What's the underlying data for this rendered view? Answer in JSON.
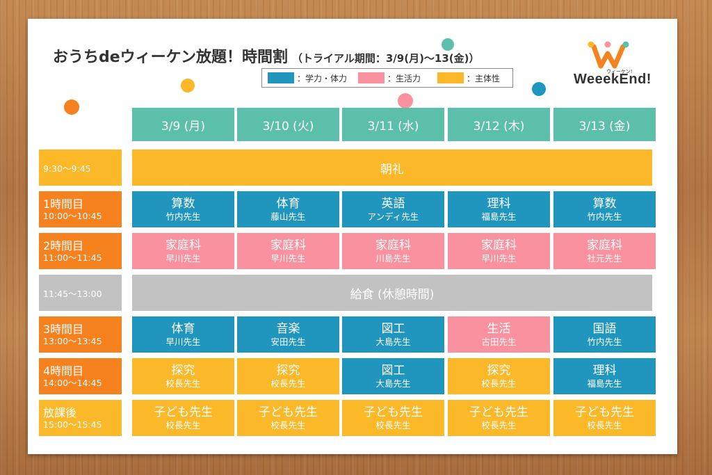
{
  "title": {
    "main": "おうちdeウィーケン放題！時間割",
    "sub": "（トライアル期間：3/9(月)〜13(金)）"
  },
  "legend": [
    {
      "label": "：学力・体力",
      "color": "#2096bf"
    },
    {
      "label": "：生活力",
      "color": "#f9919f"
    },
    {
      "label": "：主体性",
      "color": "#fbb829"
    }
  ],
  "logo": {
    "text": "WeeekEnd!",
    "small": "ウィーケン!"
  },
  "days": [
    "3/9 (月)",
    "3/10 (火)",
    "3/11 (水)",
    "3/12 (木)",
    "3/13 (金)"
  ],
  "periods": [
    {
      "name": "",
      "time": "9:30〜9:45",
      "wide": "朝礼"
    },
    {
      "name": "1時間目",
      "time": "10:00〜10:45",
      "lessons": [
        {
          "subject": "算数",
          "teacher": "竹内先生",
          "cat": "blue"
        },
        {
          "subject": "体育",
          "teacher": "藤山先生",
          "cat": "blue"
        },
        {
          "subject": "英語",
          "teacher": "アンディ先生",
          "cat": "blue"
        },
        {
          "subject": "理科",
          "teacher": "福島先生",
          "cat": "blue"
        },
        {
          "subject": "算数",
          "teacher": "竹内先生",
          "cat": "blue"
        }
      ]
    },
    {
      "name": "2時間目",
      "time": "11:00〜11:45",
      "lessons": [
        {
          "subject": "家庭科",
          "teacher": "早川先生",
          "cat": "pink"
        },
        {
          "subject": "家庭科",
          "teacher": "早川先生",
          "cat": "pink"
        },
        {
          "subject": "家庭科",
          "teacher": "川島先生",
          "cat": "pink"
        },
        {
          "subject": "家庭科",
          "teacher": "早川先生",
          "cat": "pink"
        },
        {
          "subject": "家庭科",
          "teacher": "社元先生",
          "cat": "pink"
        }
      ]
    },
    {
      "name": "",
      "time": "11:45〜13:00",
      "wide": "給食 (休憩時間)"
    },
    {
      "name": "3時間目",
      "time": "13:00〜13:45",
      "lessons": [
        {
          "subject": "体育",
          "teacher": "早川先生",
          "cat": "blue"
        },
        {
          "subject": "音楽",
          "teacher": "安田先生",
          "cat": "blue"
        },
        {
          "subject": "図工",
          "teacher": "大島先生",
          "cat": "blue"
        },
        {
          "subject": "生活",
          "teacher": "古田先生",
          "cat": "pink"
        },
        {
          "subject": "国語",
          "teacher": "竹内先生",
          "cat": "blue"
        }
      ]
    },
    {
      "name": "4時間目",
      "time": "14:00〜14:45",
      "lessons": [
        {
          "subject": "探究",
          "teacher": "校長先生",
          "cat": "yellow"
        },
        {
          "subject": "探究",
          "teacher": "校長先生",
          "cat": "yellow"
        },
        {
          "subject": "図工",
          "teacher": "大島先生",
          "cat": "blue"
        },
        {
          "subject": "探究",
          "teacher": "校長先生",
          "cat": "yellow"
        },
        {
          "subject": "理科",
          "teacher": "福島先生",
          "cat": "blue"
        }
      ]
    },
    {
      "name": "放課後",
      "time": "15:00〜15:45",
      "lessons": [
        {
          "subject": "子ども先生",
          "teacher": "校長先生",
          "cat": "yellow"
        },
        {
          "subject": "子ども先生",
          "teacher": "校長先生",
          "cat": "yellow"
        },
        {
          "subject": "子ども先生",
          "teacher": "校長先生",
          "cat": "yellow"
        },
        {
          "subject": "子ども先生",
          "teacher": "校長先生",
          "cat": "yellow"
        },
        {
          "subject": "子ども先生",
          "teacher": "校長先生",
          "cat": "yellow"
        }
      ]
    }
  ]
}
